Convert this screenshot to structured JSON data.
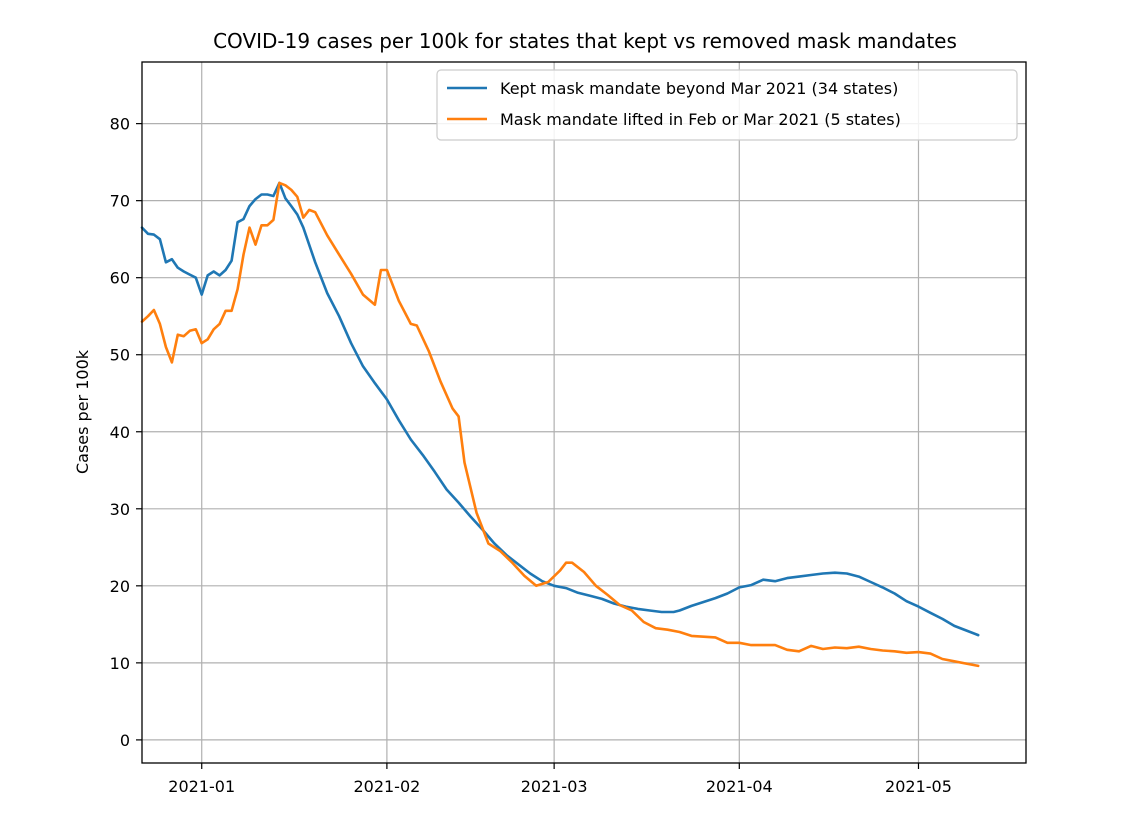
{
  "chart_data": {
    "type": "line",
    "title": "COVID-19 cases per 100k for states that kept vs removed mask mandates",
    "xlabel": "",
    "ylabel": "Cases per 100k",
    "xlim": [
      "2020-12-22",
      "2021-05-19"
    ],
    "ylim": [
      -3,
      88
    ],
    "x_ticks": [
      {
        "date": "2021-01-01",
        "label": "2021-01"
      },
      {
        "date": "2021-02-01",
        "label": "2021-02"
      },
      {
        "date": "2021-03-01",
        "label": "2021-03"
      },
      {
        "date": "2021-04-01",
        "label": "2021-04"
      },
      {
        "date": "2021-05-01",
        "label": "2021-05"
      }
    ],
    "y_ticks": [
      0,
      10,
      20,
      30,
      40,
      50,
      60,
      70,
      80
    ],
    "grid": true,
    "legend_position": "top-right",
    "series": [
      {
        "name": "Kept mask mandate beyond Mar 2021 (34 states)",
        "color": "#1f77b4",
        "points": [
          [
            "2020-12-22",
            66.5
          ],
          [
            "2020-12-23",
            65.7
          ],
          [
            "2020-12-24",
            65.6
          ],
          [
            "2020-12-25",
            65.0
          ],
          [
            "2020-12-26",
            62.0
          ],
          [
            "2020-12-27",
            62.4
          ],
          [
            "2020-12-28",
            61.3
          ],
          [
            "2020-12-29",
            60.8
          ],
          [
            "2020-12-30",
            60.4
          ],
          [
            "2020-12-31",
            60.0
          ],
          [
            "2021-01-01",
            57.8
          ],
          [
            "2021-01-02",
            60.3
          ],
          [
            "2021-01-03",
            60.8
          ],
          [
            "2021-01-04",
            60.3
          ],
          [
            "2021-01-05",
            61.0
          ],
          [
            "2021-01-06",
            62.2
          ],
          [
            "2021-01-07",
            67.2
          ],
          [
            "2021-01-08",
            67.6
          ],
          [
            "2021-01-09",
            69.3
          ],
          [
            "2021-01-10",
            70.2
          ],
          [
            "2021-01-11",
            70.8
          ],
          [
            "2021-01-12",
            70.8
          ],
          [
            "2021-01-13",
            70.6
          ],
          [
            "2021-01-14",
            72.3
          ],
          [
            "2021-01-15",
            70.3
          ],
          [
            "2021-01-16",
            69.3
          ],
          [
            "2021-01-17",
            68.2
          ],
          [
            "2021-01-18",
            66.5
          ],
          [
            "2021-01-20",
            62.0
          ],
          [
            "2021-01-22",
            58.0
          ],
          [
            "2021-01-24",
            55.0
          ],
          [
            "2021-01-26",
            51.5
          ],
          [
            "2021-01-28",
            48.5
          ],
          [
            "2021-01-30",
            46.3
          ],
          [
            "2021-02-01",
            44.2
          ],
          [
            "2021-02-03",
            41.5
          ],
          [
            "2021-02-05",
            39.0
          ],
          [
            "2021-02-07",
            37.0
          ],
          [
            "2021-02-09",
            34.8
          ],
          [
            "2021-02-11",
            32.5
          ],
          [
            "2021-02-13",
            30.8
          ],
          [
            "2021-02-15",
            29.0
          ],
          [
            "2021-02-17",
            27.3
          ],
          [
            "2021-02-19",
            25.5
          ],
          [
            "2021-02-21",
            24.0
          ],
          [
            "2021-02-23",
            22.8
          ],
          [
            "2021-02-25",
            21.6
          ],
          [
            "2021-02-27",
            20.6
          ],
          [
            "2021-03-01",
            20.0
          ],
          [
            "2021-03-03",
            19.7
          ],
          [
            "2021-03-05",
            19.1
          ],
          [
            "2021-03-07",
            18.7
          ],
          [
            "2021-03-09",
            18.3
          ],
          [
            "2021-03-11",
            17.7
          ],
          [
            "2021-03-13",
            17.3
          ],
          [
            "2021-03-15",
            17.0
          ],
          [
            "2021-03-17",
            16.8
          ],
          [
            "2021-03-19",
            16.6
          ],
          [
            "2021-03-21",
            16.6
          ],
          [
            "2021-03-22",
            16.8
          ],
          [
            "2021-03-24",
            17.4
          ],
          [
            "2021-03-26",
            17.9
          ],
          [
            "2021-03-28",
            18.4
          ],
          [
            "2021-03-30",
            19.0
          ],
          [
            "2021-04-01",
            19.8
          ],
          [
            "2021-04-03",
            20.1
          ],
          [
            "2021-04-05",
            20.8
          ],
          [
            "2021-04-07",
            20.6
          ],
          [
            "2021-04-09",
            21.0
          ],
          [
            "2021-04-11",
            21.2
          ],
          [
            "2021-04-13",
            21.4
          ],
          [
            "2021-04-15",
            21.6
          ],
          [
            "2021-04-17",
            21.7
          ],
          [
            "2021-04-19",
            21.6
          ],
          [
            "2021-04-21",
            21.2
          ],
          [
            "2021-04-23",
            20.5
          ],
          [
            "2021-04-25",
            19.8
          ],
          [
            "2021-04-27",
            19.0
          ],
          [
            "2021-04-29",
            18.0
          ],
          [
            "2021-05-01",
            17.3
          ],
          [
            "2021-05-03",
            16.5
          ],
          [
            "2021-05-05",
            15.7
          ],
          [
            "2021-05-07",
            14.8
          ],
          [
            "2021-05-09",
            14.2
          ],
          [
            "2021-05-11",
            13.6
          ]
        ]
      },
      {
        "name": "Mask mandate lifted in Feb or Mar 2021 (5 states)",
        "color": "#ff7f0e",
        "points": [
          [
            "2020-12-22",
            54.3
          ],
          [
            "2020-12-23",
            55.0
          ],
          [
            "2020-12-24",
            55.8
          ],
          [
            "2020-12-25",
            54.0
          ],
          [
            "2020-12-26",
            51.0
          ],
          [
            "2020-12-27",
            49.0
          ],
          [
            "2020-12-28",
            52.6
          ],
          [
            "2020-12-29",
            52.4
          ],
          [
            "2020-12-30",
            53.1
          ],
          [
            "2020-12-31",
            53.3
          ],
          [
            "2021-01-01",
            51.5
          ],
          [
            "2021-01-02",
            52.0
          ],
          [
            "2021-01-03",
            53.3
          ],
          [
            "2021-01-04",
            54.0
          ],
          [
            "2021-01-05",
            55.7
          ],
          [
            "2021-01-06",
            55.7
          ],
          [
            "2021-01-07",
            58.5
          ],
          [
            "2021-01-08",
            63.0
          ],
          [
            "2021-01-09",
            66.5
          ],
          [
            "2021-01-10",
            64.3
          ],
          [
            "2021-01-11",
            66.8
          ],
          [
            "2021-01-12",
            66.8
          ],
          [
            "2021-01-13",
            67.5
          ],
          [
            "2021-01-14",
            72.3
          ],
          [
            "2021-01-15",
            72.0
          ],
          [
            "2021-01-16",
            71.4
          ],
          [
            "2021-01-17",
            70.5
          ],
          [
            "2021-01-18",
            67.8
          ],
          [
            "2021-01-19",
            68.8
          ],
          [
            "2021-01-20",
            68.5
          ],
          [
            "2021-01-22",
            65.5
          ],
          [
            "2021-01-24",
            63.0
          ],
          [
            "2021-01-26",
            60.5
          ],
          [
            "2021-01-28",
            57.8
          ],
          [
            "2021-01-30",
            56.5
          ],
          [
            "2021-01-31",
            61.0
          ],
          [
            "2021-02-01",
            61.0
          ],
          [
            "2021-02-03",
            57.0
          ],
          [
            "2021-02-05",
            54.0
          ],
          [
            "2021-02-06",
            53.8
          ],
          [
            "2021-02-08",
            50.5
          ],
          [
            "2021-02-10",
            46.5
          ],
          [
            "2021-02-12",
            43.0
          ],
          [
            "2021-02-13",
            42.0
          ],
          [
            "2021-02-14",
            36.0
          ],
          [
            "2021-02-16",
            29.5
          ],
          [
            "2021-02-18",
            25.5
          ],
          [
            "2021-02-20",
            24.5
          ],
          [
            "2021-02-22",
            23.0
          ],
          [
            "2021-02-24",
            21.3
          ],
          [
            "2021-02-26",
            20.0
          ],
          [
            "2021-02-28",
            20.5
          ],
          [
            "2021-03-02",
            22.0
          ],
          [
            "2021-03-03",
            23.0
          ],
          [
            "2021-03-04",
            23.0
          ],
          [
            "2021-03-06",
            21.8
          ],
          [
            "2021-03-08",
            20.0
          ],
          [
            "2021-03-10",
            18.8
          ],
          [
            "2021-03-12",
            17.5
          ],
          [
            "2021-03-14",
            16.8
          ],
          [
            "2021-03-16",
            15.3
          ],
          [
            "2021-03-18",
            14.5
          ],
          [
            "2021-03-20",
            14.3
          ],
          [
            "2021-03-22",
            14.0
          ],
          [
            "2021-03-24",
            13.5
          ],
          [
            "2021-03-26",
            13.4
          ],
          [
            "2021-03-28",
            13.3
          ],
          [
            "2021-03-30",
            12.6
          ],
          [
            "2021-04-01",
            12.6
          ],
          [
            "2021-04-03",
            12.3
          ],
          [
            "2021-04-05",
            12.3
          ],
          [
            "2021-04-07",
            12.3
          ],
          [
            "2021-04-09",
            11.7
          ],
          [
            "2021-04-11",
            11.5
          ],
          [
            "2021-04-13",
            12.2
          ],
          [
            "2021-04-15",
            11.8
          ],
          [
            "2021-04-17",
            12.0
          ],
          [
            "2021-04-19",
            11.9
          ],
          [
            "2021-04-21",
            12.1
          ],
          [
            "2021-04-23",
            11.8
          ],
          [
            "2021-04-25",
            11.6
          ],
          [
            "2021-04-27",
            11.5
          ],
          [
            "2021-04-29",
            11.3
          ],
          [
            "2021-05-01",
            11.4
          ],
          [
            "2021-05-03",
            11.2
          ],
          [
            "2021-05-05",
            10.5
          ],
          [
            "2021-05-07",
            10.2
          ],
          [
            "2021-05-09",
            9.9
          ],
          [
            "2021-05-11",
            9.6
          ]
        ]
      }
    ]
  }
}
